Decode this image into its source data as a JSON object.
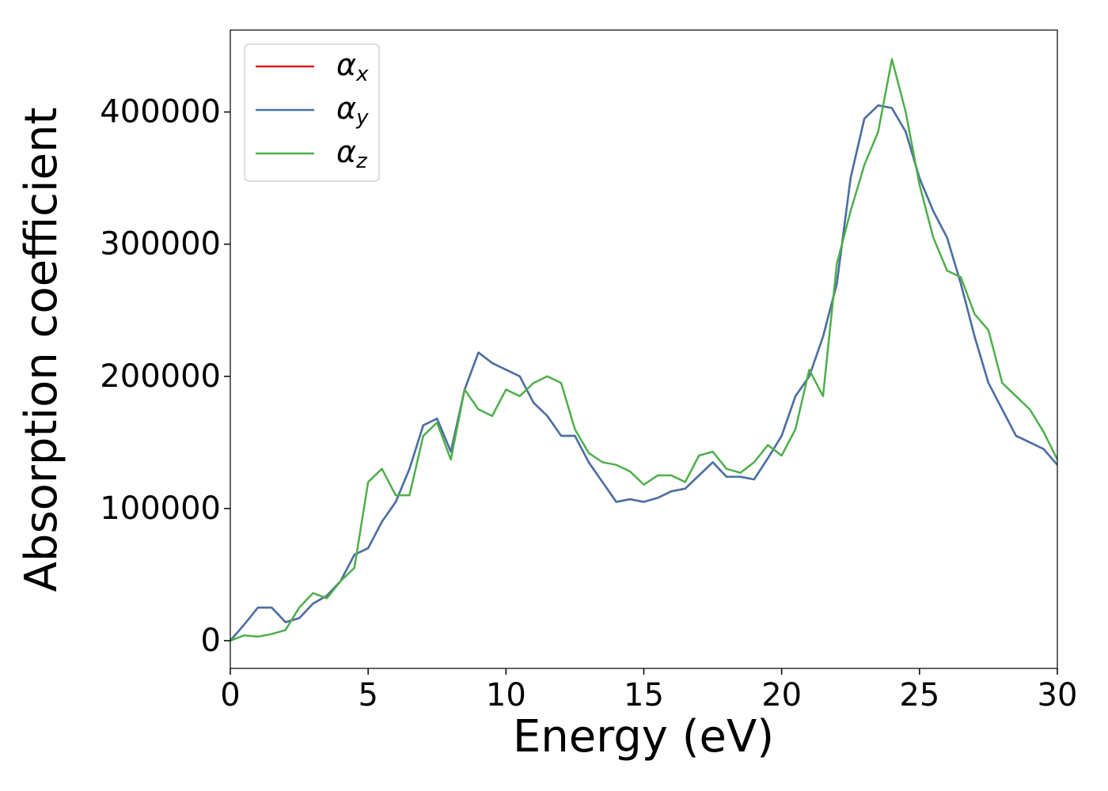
{
  "chart_data": {
    "type": "line",
    "xlabel": "Energy (eV)",
    "ylabel": "Absorption coefficient",
    "x": [
      0,
      0.5,
      1,
      1.5,
      2,
      2.5,
      3,
      3.5,
      4,
      4.5,
      5,
      5.5,
      6,
      6.5,
      7,
      7.5,
      8,
      8.5,
      9,
      9.5,
      10,
      10.5,
      11,
      11.5,
      12,
      12.5,
      13,
      13.5,
      14,
      14.5,
      15,
      15.5,
      16,
      16.5,
      17,
      17.5,
      18,
      18.5,
      19,
      19.5,
      20,
      20.5,
      21,
      21.5,
      22,
      22.5,
      23,
      23.5,
      24,
      24.5,
      25,
      25.5,
      26,
      26.5,
      27,
      27.5,
      28,
      28.5,
      29,
      29.5,
      30
    ],
    "series": [
      {
        "name": "αx",
        "color": "#e41a1c",
        "values": [
          0,
          12000,
          25000,
          25000,
          14000,
          17000,
          28000,
          34000,
          45000,
          65000,
          70000,
          90000,
          105000,
          130000,
          163000,
          168000,
          143000,
          190000,
          218000,
          210000,
          205000,
          200000,
          180000,
          170000,
          155000,
          155000,
          135000,
          120000,
          105000,
          107000,
          105000,
          108000,
          113000,
          115000,
          125000,
          135000,
          124000,
          124000,
          122000,
          138000,
          155000,
          185000,
          200000,
          230000,
          270000,
          350000,
          395000,
          405000,
          403000,
          385000,
          350000,
          325000,
          305000,
          270000,
          230000,
          195000,
          175000,
          155000,
          150000,
          145000,
          133000
        ]
      },
      {
        "name": "αy",
        "color": "#4573a8",
        "values": [
          0,
          12000,
          25000,
          25000,
          14000,
          17000,
          28000,
          34000,
          45000,
          65000,
          70000,
          90000,
          105000,
          130000,
          163000,
          168000,
          143000,
          190000,
          218000,
          210000,
          205000,
          200000,
          180000,
          170000,
          155000,
          155000,
          135000,
          120000,
          105000,
          107000,
          105000,
          108000,
          113000,
          115000,
          125000,
          135000,
          124000,
          124000,
          122000,
          138000,
          155000,
          185000,
          200000,
          230000,
          270000,
          350000,
          395000,
          405000,
          403000,
          385000,
          350000,
          325000,
          305000,
          270000,
          230000,
          195000,
          175000,
          155000,
          150000,
          145000,
          133000
        ]
      },
      {
        "name": "αz",
        "color": "#4daf4a",
        "values": [
          0,
          4000,
          3000,
          5000,
          8000,
          25000,
          36000,
          32000,
          45000,
          55000,
          120000,
          130000,
          110000,
          110000,
          155000,
          165000,
          137000,
          190000,
          175000,
          170000,
          190000,
          185000,
          195000,
          200000,
          195000,
          160000,
          142000,
          135000,
          133000,
          128000,
          118000,
          125000,
          125000,
          120000,
          140000,
          143000,
          130000,
          127000,
          135000,
          148000,
          140000,
          160000,
          205000,
          185000,
          285000,
          325000,
          360000,
          385000,
          440000,
          400000,
          345000,
          305000,
          280000,
          275000,
          247000,
          235000,
          195000,
          185000,
          175000,
          158000,
          137000
        ]
      }
    ],
    "xlim": [
      0,
      30
    ],
    "xticks": [
      0,
      5,
      10,
      15,
      20,
      25,
      30
    ],
    "ylim": [
      -21000,
      462000
    ],
    "yticks": [
      0,
      100000,
      200000,
      300000,
      400000
    ],
    "legend": "upper left"
  }
}
